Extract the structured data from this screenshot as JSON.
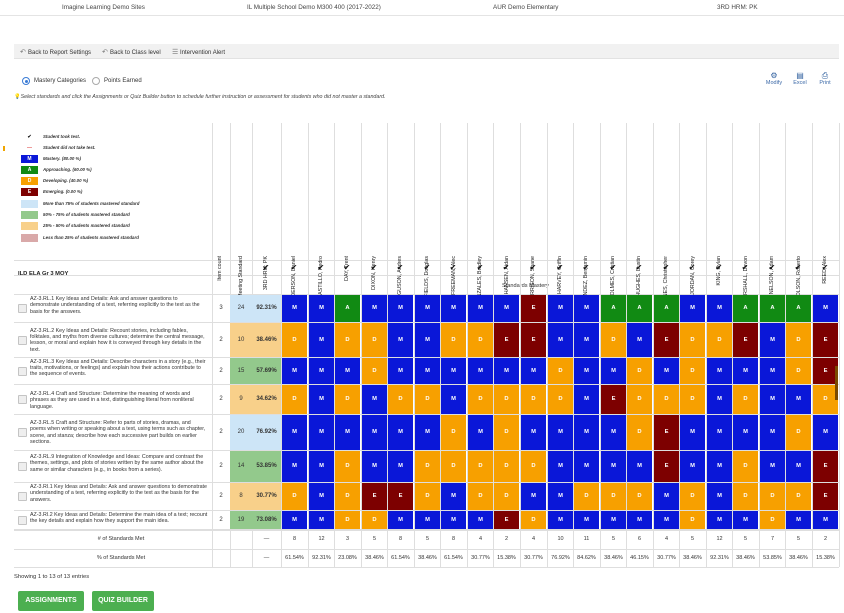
{
  "topbar": {
    "org": "Imagine Learning Demo Sites",
    "district": "IL Multiple School Demo M300 400 (2017-2022)",
    "school": "AUR Demo Elementary",
    "class": "3RD HRM: PK"
  },
  "nav": {
    "back_report": "Back to Report Settings",
    "back_class": "Back to Class level",
    "intervention": "Intervention Alert"
  },
  "view": {
    "mastery": "Mastery Categories",
    "points": "Points Earned"
  },
  "tools": {
    "modify": "Modify",
    "excel": "Excel",
    "print": "Print"
  },
  "instructions": "Select standards and click the Assignments or Quiz Builder button to schedule further instruction or assessment for students who did not master a standard.",
  "legend": [
    {
      "symbol": "✔",
      "text": "Student took test.",
      "color": "#ffffff",
      "fg": "#111111"
    },
    {
      "symbol": "—",
      "text": "Student did not take test.",
      "color": "#ffffff",
      "fg": "#e05050"
    },
    {
      "symbol": "M",
      "text": "Mastery.  (80.00 %)",
      "color": "#0a17d8",
      "fg": "#ffffff"
    },
    {
      "symbol": "A",
      "text": "Approaching.  (60.00 %)",
      "color": "#118a13",
      "fg": "#ffffff"
    },
    {
      "symbol": "D",
      "text": "Developing.  (40.00 %)",
      "color": "#f7a000",
      "fg": "#ffffff"
    },
    {
      "symbol": "E",
      "text": "Emerging.  (0.00 %)",
      "color": "#7d0000",
      "fg": "#ffffff"
    },
    {
      "symbol": "",
      "text": "More than 75% of students mastered standard",
      "color": "#cde5f7",
      "fg": "#333333"
    },
    {
      "symbol": "",
      "text": "50% - 75% of students mastered standard",
      "color": "#93c98c",
      "fg": "#333333"
    },
    {
      "symbol": "",
      "text": "25% - 50% of students mastered standard",
      "color": "#f8d08a",
      "fg": "#333333"
    },
    {
      "symbol": "",
      "text": "Less than 25% of students mastered standard",
      "color": "#d9a9a9",
      "fg": "#333333"
    }
  ],
  "columns": {
    "item_count": "Item count",
    "num_meeting": "Number of Students Meeting Standard",
    "class_name": "3RD HRM: PK"
  },
  "students": [
    "ANDERSON, Daniel",
    "CASTILLO, Pedro",
    "DAY, Trent",
    "DIXON, Henry",
    "FERGUSON, Andres",
    "FIELDS, Douglas",
    "FREEMAN, Alec",
    "GONZALES, Bradley",
    "HANSEN, Aidan",
    "HARRISON, Shane",
    "HARVEY, Griffin",
    "HERNANDEZ, Benjamin",
    "HOLMES, Cristian",
    "HUGHES, Dustin",
    "JONES, Christopher",
    "JORDAN, Corey",
    "KING, Dylan",
    "MARSHALL, Devon",
    "NELSON, Adam",
    "OLSON, Roberto",
    "REED, Alex"
  ],
  "check": "✔",
  "band_label": "ILD ELA Gr 3 MOY",
  "standards_mastery": "Standards Mastery",
  "level_colors": {
    "M": "#0a17d8",
    "A": "#118a13",
    "D": "#f7a000",
    "E": "#7d0000"
  },
  "rows": [
    {
      "standard": "AZ-3.RL.1 Key Ideas and Details: Ask and answer questions to demonstrate understanding of a text, referring explicitly to the text as the basis for the answers.",
      "items": "3",
      "count": "24",
      "pct": "92.31%",
      "band": "#cde5f7",
      "cells": [
        "M",
        "M",
        "A",
        "M",
        "M",
        "M",
        "M",
        "M",
        "M",
        "E",
        "M",
        "M",
        "A",
        "A",
        "A",
        "M",
        "M",
        "A",
        "A",
        "A",
        "M"
      ]
    },
    {
      "standard": "AZ-3.RL.2 Key Ideas and Details: Recount stories, including fables, folktales, and myths from diverse cultures; determine the central message, lesson, or moral and explain how it is conveyed through key details in the text.",
      "items": "2",
      "count": "10",
      "pct": "38.46%",
      "band": "#f8d08a",
      "cells": [
        "D",
        "M",
        "D",
        "D",
        "M",
        "M",
        "D",
        "D",
        "E",
        "E",
        "M",
        "M",
        "D",
        "M",
        "E",
        "D",
        "D",
        "E",
        "M",
        "D",
        "E"
      ]
    },
    {
      "standard": "AZ-3.RL.3 Key Ideas and Details: Describe characters in a story (e.g., their traits, motivations, or feelings) and explain how their actions contribute to the sequence of events.",
      "items": "2",
      "count": "15",
      "pct": "57.69%",
      "band": "#93c98c",
      "cells": [
        "M",
        "M",
        "M",
        "D",
        "M",
        "M",
        "M",
        "M",
        "M",
        "M",
        "D",
        "M",
        "M",
        "D",
        "M",
        "D",
        "M",
        "M",
        "M",
        "D",
        "E"
      ]
    },
    {
      "standard": "AZ-3.RL.4 Craft and Structure: Determine the meaning of words and phrases as they are used in a text, distinguishing literal from nonliteral language.",
      "items": "2",
      "count": "9",
      "pct": "34.62%",
      "band": "#f8d08a",
      "cells": [
        "D",
        "M",
        "D",
        "M",
        "D",
        "D",
        "M",
        "D",
        "D",
        "D",
        "D",
        "M",
        "E",
        "D",
        "D",
        "D",
        "M",
        "D",
        "M",
        "M",
        "D"
      ]
    },
    {
      "standard": "AZ-3.RL.5 Craft and Structure: Refer to parts of stories, dramas, and poems when writing or speaking about a text, using terms such as chapter, scene, and stanza; describe how each successive part builds on earlier sections.",
      "items": "2",
      "count": "20",
      "pct": "76.92%",
      "band": "#cde5f7",
      "cells": [
        "M",
        "M",
        "M",
        "M",
        "M",
        "M",
        "D",
        "M",
        "D",
        "M",
        "M",
        "M",
        "M",
        "D",
        "E",
        "M",
        "M",
        "M",
        "M",
        "D",
        "M"
      ]
    },
    {
      "standard": "AZ-3.RL.9 Integration of Knowledge and Ideas: Compare and contrast the themes, settings, and plots of stories written by the same author about the same or similar characters (e.g., in books from a series).",
      "items": "2",
      "count": "14",
      "pct": "53.85%",
      "band": "#93c98c",
      "cells": [
        "M",
        "M",
        "D",
        "M",
        "M",
        "D",
        "D",
        "D",
        "D",
        "D",
        "M",
        "M",
        "M",
        "M",
        "E",
        "M",
        "M",
        "D",
        "M",
        "M",
        "E"
      ]
    },
    {
      "standard": "AZ-3.RI.1 Key Ideas and Details: Ask and answer questions to demonstrate understanding of a text, referring explicitly to the text as the basis for the answers.",
      "items": "2",
      "count": "8",
      "pct": "30.77%",
      "band": "#f8d08a",
      "cells": [
        "D",
        "M",
        "D",
        "E",
        "E",
        "D",
        "M",
        "D",
        "D",
        "M",
        "M",
        "D",
        "D",
        "D",
        "M",
        "D",
        "M",
        "D",
        "D",
        "D",
        "E"
      ]
    },
    {
      "standard": "AZ-3.RI.2 Key Ideas and Details: Determine the main idea of a text; recount the key details and explain how they support the main idea.",
      "items": "2",
      "count": "19",
      "pct": "73.08%",
      "band": "#93c98c",
      "cells": [
        "M",
        "M",
        "D",
        "D",
        "M",
        "M",
        "M",
        "M",
        "E",
        "D",
        "M",
        "M",
        "M",
        "M",
        "M",
        "D",
        "M",
        "M",
        "D",
        "M",
        "M"
      ]
    }
  ],
  "footer": {
    "met_label": "# of Standards Met",
    "pct_label": "% of Standards Met",
    "dash": "—",
    "met": [
      "8",
      "12",
      "3",
      "5",
      "8",
      "5",
      "8",
      "4",
      "2",
      "4",
      "10",
      "11",
      "5",
      "6",
      "4",
      "5",
      "12",
      "5",
      "7",
      "5",
      "2"
    ],
    "pct": [
      "61.54%",
      "92.31%",
      "23.08%",
      "38.46%",
      "61.54%",
      "38.46%",
      "61.54%",
      "30.77%",
      "15.38%",
      "30.77%",
      "76.92%",
      "84.62%",
      "38.46%",
      "46.15%",
      "30.77%",
      "38.46%",
      "92.31%",
      "38.46%",
      "53.85%",
      "38.46%",
      "15.38%"
    ]
  },
  "showing": "Showing 1 to 13 of 13 entries",
  "buttons": {
    "assignments": "ASSIGNMENTS",
    "quiz_builder": "QUIZ BUILDER"
  }
}
